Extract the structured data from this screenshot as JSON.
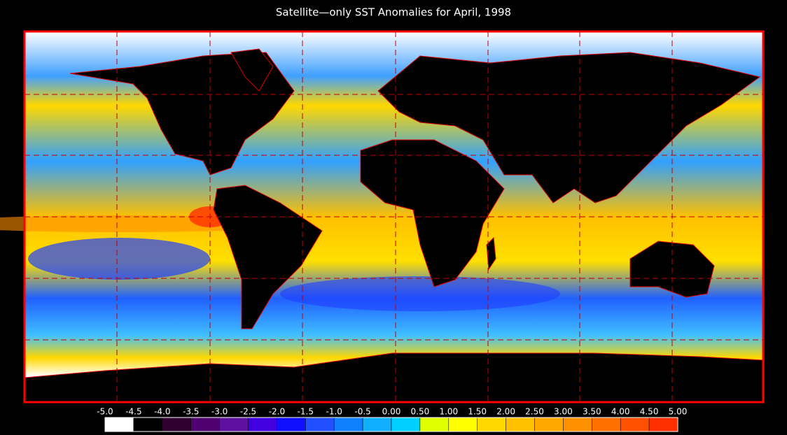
{
  "title": "Satellite—only SST Anomalies for April, 1998",
  "colorbar": {
    "labels": [
      "-5.0",
      "-4.5",
      "-4.0",
      "-3.5",
      "-3.0",
      "-2.5",
      "-2.0",
      "-1.5",
      "-1.0",
      "-0.5",
      "0.00",
      "0.50",
      "1.00",
      "1.50",
      "2.00",
      "2.50",
      "3.00",
      "3.50",
      "4.00",
      "4.50",
      "5.00"
    ],
    "colors": [
      "#ffffff",
      "#000000",
      "#300030",
      "#500070",
      "#6010a0",
      "#4000e0",
      "#1010ff",
      "#2050ff",
      "#1080ff",
      "#10b0ff",
      "#00d0ff",
      "#e0ff00",
      "#ffff00",
      "#ffd800",
      "#ffc000",
      "#ffa800",
      "#ff9000",
      "#ff7000",
      "#ff5000",
      "#ff3000"
    ]
  }
}
